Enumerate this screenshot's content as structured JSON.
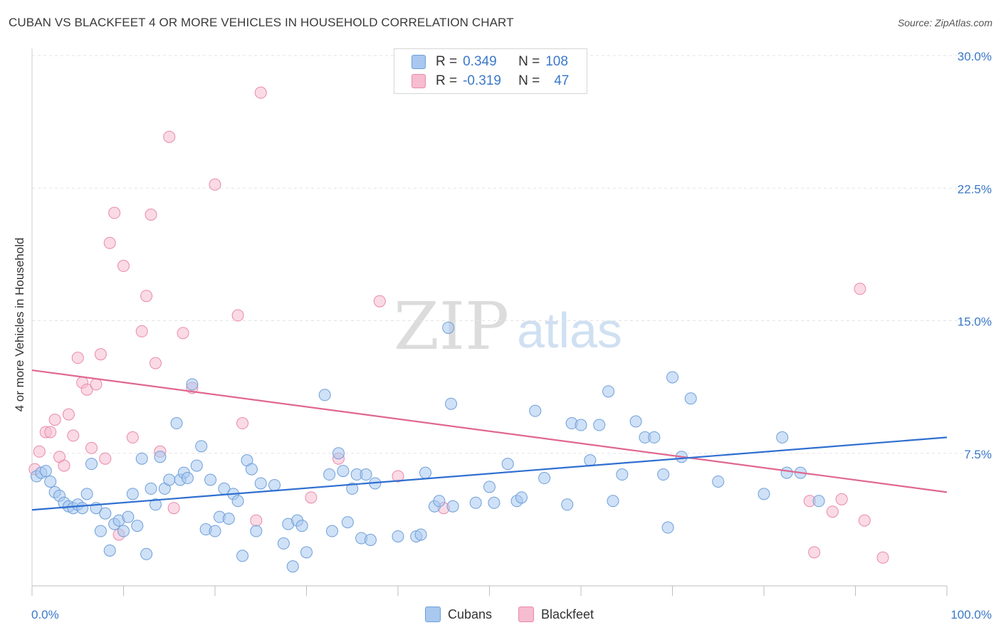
{
  "title": "CUBAN VS BLACKFEET 4 OR MORE VEHICLES IN HOUSEHOLD CORRELATION CHART",
  "source": "Source: ZipAtlas.com",
  "watermark": {
    "zip": "ZIP",
    "atlas": "atlas"
  },
  "legend": {
    "rows": [
      {
        "r_label": "R =",
        "r_value": "0.349",
        "n_label": "N =",
        "n_value": "108"
      },
      {
        "r_label": "R =",
        "r_value": "-0.319",
        "n_label": "N =",
        "n_value": "47"
      }
    ]
  },
  "colors": {
    "cubans_fill": "#a8c8f0",
    "cubans_stroke": "#6f9fd8",
    "cubans_line": "#2f6fd0",
    "blackfeet_fill": "#f6bcd0",
    "blackfeet_stroke": "#e98aab",
    "blackfeet_line": "#e0678f",
    "tick_label": "#3a78c9",
    "grid": "#e3e3e3"
  },
  "chart_data": {
    "type": "scatter",
    "title": "CUBAN VS BLACKFEET 4 OR MORE VEHICLES IN HOUSEHOLD CORRELATION CHART",
    "xlabel": "",
    "ylabel": "4 or more Vehicles in Household",
    "xlim": [
      0,
      100
    ],
    "ylim": [
      0,
      30
    ],
    "x_tick_labels": [
      "0.0%",
      "100.0%"
    ],
    "y_ticks": [
      7.5,
      15.0,
      22.5,
      30.0
    ],
    "y_tick_labels": [
      "7.5%",
      "15.0%",
      "22.5%",
      "30.0%"
    ],
    "grid": true,
    "legend_placement": "top-center",
    "series": [
      {
        "name": "Cubans",
        "r": 0.349,
        "n": 108,
        "trend": [
          [
            0,
            4.3
          ],
          [
            100,
            8.4
          ]
        ],
        "points": [
          [
            0.5,
            6.2
          ],
          [
            1.0,
            6.4
          ],
          [
            1.5,
            6.5
          ],
          [
            2.0,
            5.9
          ],
          [
            2.5,
            5.3
          ],
          [
            3.0,
            5.1
          ],
          [
            3.5,
            4.7
          ],
          [
            4.0,
            4.5
          ],
          [
            4.5,
            4.4
          ],
          [
            5.0,
            4.6
          ],
          [
            5.5,
            4.4
          ],
          [
            6.0,
            5.2
          ],
          [
            6.5,
            6.9
          ],
          [
            7.0,
            4.4
          ],
          [
            7.5,
            3.1
          ],
          [
            8.0,
            4.1
          ],
          [
            8.5,
            2.0
          ],
          [
            9.0,
            3.5
          ],
          [
            9.5,
            3.7
          ],
          [
            10.0,
            3.1
          ],
          [
            10.5,
            3.9
          ],
          [
            11.0,
            5.2
          ],
          [
            11.5,
            3.4
          ],
          [
            12.0,
            7.2
          ],
          [
            12.5,
            1.8
          ],
          [
            13.0,
            5.5
          ],
          [
            13.5,
            4.6
          ],
          [
            14.0,
            7.3
          ],
          [
            14.5,
            5.5
          ],
          [
            15.0,
            6.0
          ],
          [
            15.8,
            9.2
          ],
          [
            16.2,
            6.0
          ],
          [
            16.6,
            6.4
          ],
          [
            17.0,
            6.1
          ],
          [
            17.5,
            11.4
          ],
          [
            18.0,
            6.8
          ],
          [
            18.5,
            7.9
          ],
          [
            19.0,
            3.2
          ],
          [
            19.5,
            6.0
          ],
          [
            20.0,
            3.1
          ],
          [
            20.5,
            3.9
          ],
          [
            21.0,
            5.5
          ],
          [
            21.5,
            3.8
          ],
          [
            22.0,
            5.2
          ],
          [
            22.5,
            4.8
          ],
          [
            23.0,
            1.7
          ],
          [
            23.5,
            7.1
          ],
          [
            24.0,
            6.6
          ],
          [
            24.5,
            3.1
          ],
          [
            25.0,
            5.8
          ],
          [
            26.5,
            5.7
          ],
          [
            27.5,
            2.4
          ],
          [
            28.0,
            3.5
          ],
          [
            28.5,
            1.1
          ],
          [
            29.0,
            3.7
          ],
          [
            29.5,
            3.4
          ],
          [
            30.0,
            1.9
          ],
          [
            32.0,
            10.8
          ],
          [
            32.5,
            6.3
          ],
          [
            32.8,
            3.1
          ],
          [
            33.5,
            7.5
          ],
          [
            34.0,
            6.5
          ],
          [
            34.5,
            3.6
          ],
          [
            35.0,
            5.5
          ],
          [
            35.5,
            6.3
          ],
          [
            36.0,
            2.7
          ],
          [
            37.0,
            2.6
          ],
          [
            37.5,
            5.8
          ],
          [
            40.0,
            2.8
          ],
          [
            42.0,
            2.8
          ],
          [
            42.5,
            2.9
          ],
          [
            43.0,
            6.4
          ],
          [
            44.0,
            4.5
          ],
          [
            44.5,
            4.8
          ],
          [
            45.5,
            14.6
          ],
          [
            45.8,
            10.3
          ],
          [
            46.0,
            4.5
          ],
          [
            48.5,
            4.7
          ],
          [
            50.0,
            5.6
          ],
          [
            50.5,
            4.7
          ],
          [
            52.0,
            6.9
          ],
          [
            53.0,
            4.8
          ],
          [
            53.5,
            5.0
          ],
          [
            55.0,
            9.9
          ],
          [
            56.0,
            6.1
          ],
          [
            58.5,
            4.6
          ],
          [
            59.0,
            9.2
          ],
          [
            60.0,
            9.1
          ],
          [
            61.0,
            7.1
          ],
          [
            62.0,
            9.1
          ],
          [
            63.0,
            11.0
          ],
          [
            63.5,
            4.8
          ],
          [
            64.5,
            6.3
          ],
          [
            66.0,
            9.3
          ],
          [
            67.0,
            8.4
          ],
          [
            68.0,
            8.4
          ],
          [
            69.0,
            6.3
          ],
          [
            69.5,
            3.3
          ],
          [
            70.0,
            11.8
          ],
          [
            71.0,
            7.3
          ],
          [
            72.0,
            10.6
          ],
          [
            75.0,
            5.9
          ],
          [
            80.0,
            5.2
          ],
          [
            82.0,
            8.4
          ],
          [
            82.5,
            6.4
          ],
          [
            84.0,
            6.4
          ],
          [
            86.0,
            4.8
          ],
          [
            36.5,
            6.3
          ]
        ]
      },
      {
        "name": "Blackfeet",
        "r": -0.319,
        "n": 47,
        "trend": [
          [
            0,
            12.2
          ],
          [
            100,
            5.3
          ]
        ],
        "points": [
          [
            0.3,
            6.6
          ],
          [
            0.8,
            7.6
          ],
          [
            1.5,
            8.7
          ],
          [
            2.0,
            8.7
          ],
          [
            2.5,
            9.4
          ],
          [
            3.0,
            7.3
          ],
          [
            3.5,
            6.8
          ],
          [
            4.0,
            9.7
          ],
          [
            4.5,
            8.5
          ],
          [
            5.0,
            12.9
          ],
          [
            5.5,
            11.5
          ],
          [
            6.0,
            11.1
          ],
          [
            6.5,
            7.8
          ],
          [
            7.0,
            11.4
          ],
          [
            7.5,
            13.1
          ],
          [
            8.0,
            7.2
          ],
          [
            8.5,
            19.4
          ],
          [
            9.0,
            21.1
          ],
          [
            9.5,
            2.9
          ],
          [
            10.0,
            18.1
          ],
          [
            11.0,
            8.4
          ],
          [
            12.0,
            14.4
          ],
          [
            12.5,
            16.4
          ],
          [
            13.0,
            21.0
          ],
          [
            13.5,
            12.6
          ],
          [
            14.0,
            7.6
          ],
          [
            15.0,
            25.4
          ],
          [
            15.5,
            4.4
          ],
          [
            16.5,
            14.3
          ],
          [
            17.5,
            11.2
          ],
          [
            20.0,
            22.7
          ],
          [
            22.5,
            15.3
          ],
          [
            23.0,
            9.2
          ],
          [
            24.5,
            3.7
          ],
          [
            25.0,
            27.9
          ],
          [
            30.5,
            5.0
          ],
          [
            33.5,
            7.2
          ],
          [
            38.0,
            16.1
          ],
          [
            40.0,
            6.2
          ],
          [
            45.0,
            4.4
          ],
          [
            85.0,
            4.8
          ],
          [
            85.5,
            1.9
          ],
          [
            87.5,
            4.2
          ],
          [
            88.5,
            4.9
          ],
          [
            90.5,
            16.8
          ],
          [
            91.0,
            3.7
          ],
          [
            93.0,
            1.6
          ]
        ]
      }
    ]
  }
}
